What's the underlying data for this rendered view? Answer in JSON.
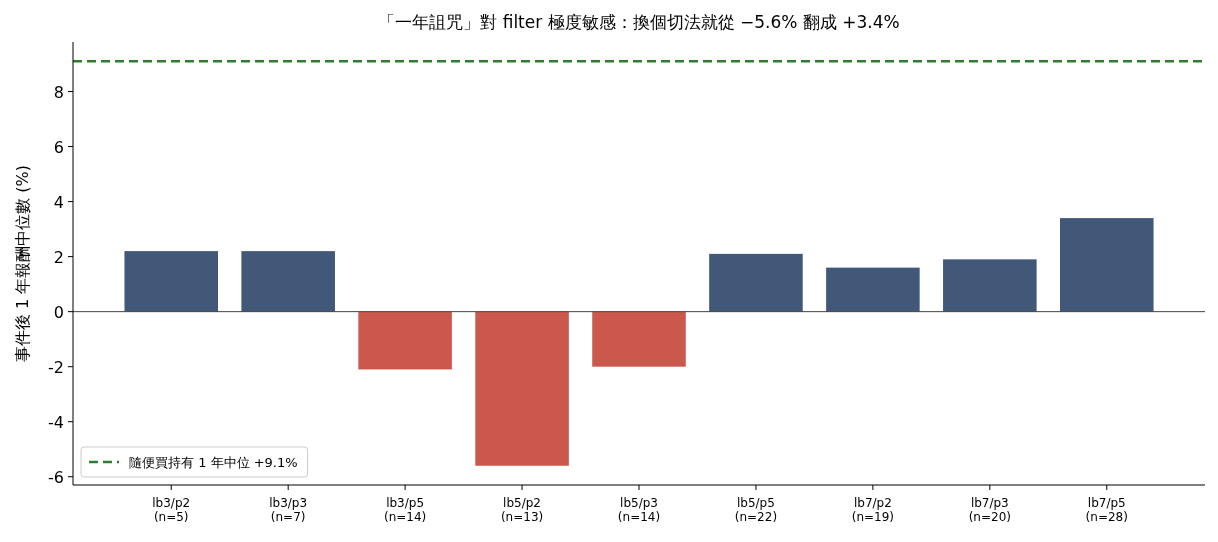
{
  "chart_data": {
    "type": "bar",
    "title": "「一年詛咒」對 filter 極度敏感：換個切法就從 −5.6% 翻成 +3.4%",
    "ylabel": "事件後 1 年報酬中位數 (%)",
    "categories": [
      "lb3/p2\n(n=5)",
      "lb3/p3\n(n=7)",
      "lb3/p5\n(n=14)",
      "lb5/p2\n(n=13)",
      "lb5/p3\n(n=14)",
      "lb5/p5\n(n=22)",
      "lb7/p2\n(n=19)",
      "lb7/p3\n(n=20)",
      "lb7/p5\n(n=28)"
    ],
    "values": [
      2.2,
      2.2,
      -2.1,
      -5.6,
      -2.0,
      2.1,
      1.6,
      1.9,
      3.4
    ],
    "colors": [
      "#425878",
      "#425878",
      "#cb584c",
      "#cb584c",
      "#cb584c",
      "#425878",
      "#425878",
      "#425878",
      "#425878"
    ],
    "ylim": [
      -6.3,
      9.8
    ],
    "yticks": [
      {
        "value": -6,
        "label": "-6"
      },
      {
        "value": -4,
        "label": "-4"
      },
      {
        "value": -2,
        "label": "-2"
      },
      0,
      2,
      4,
      6,
      8
    ],
    "ref_lines": [
      {
        "axis": "y",
        "value": 9.1,
        "label": "隨便買持有 1 年中位 +9.1%",
        "color": "#2e7d32",
        "line_style": "dashed"
      },
      {
        "axis": "y",
        "value": 0,
        "color": "#444444",
        "line_style": "solid"
      }
    ],
    "legend": "bottom left"
  }
}
